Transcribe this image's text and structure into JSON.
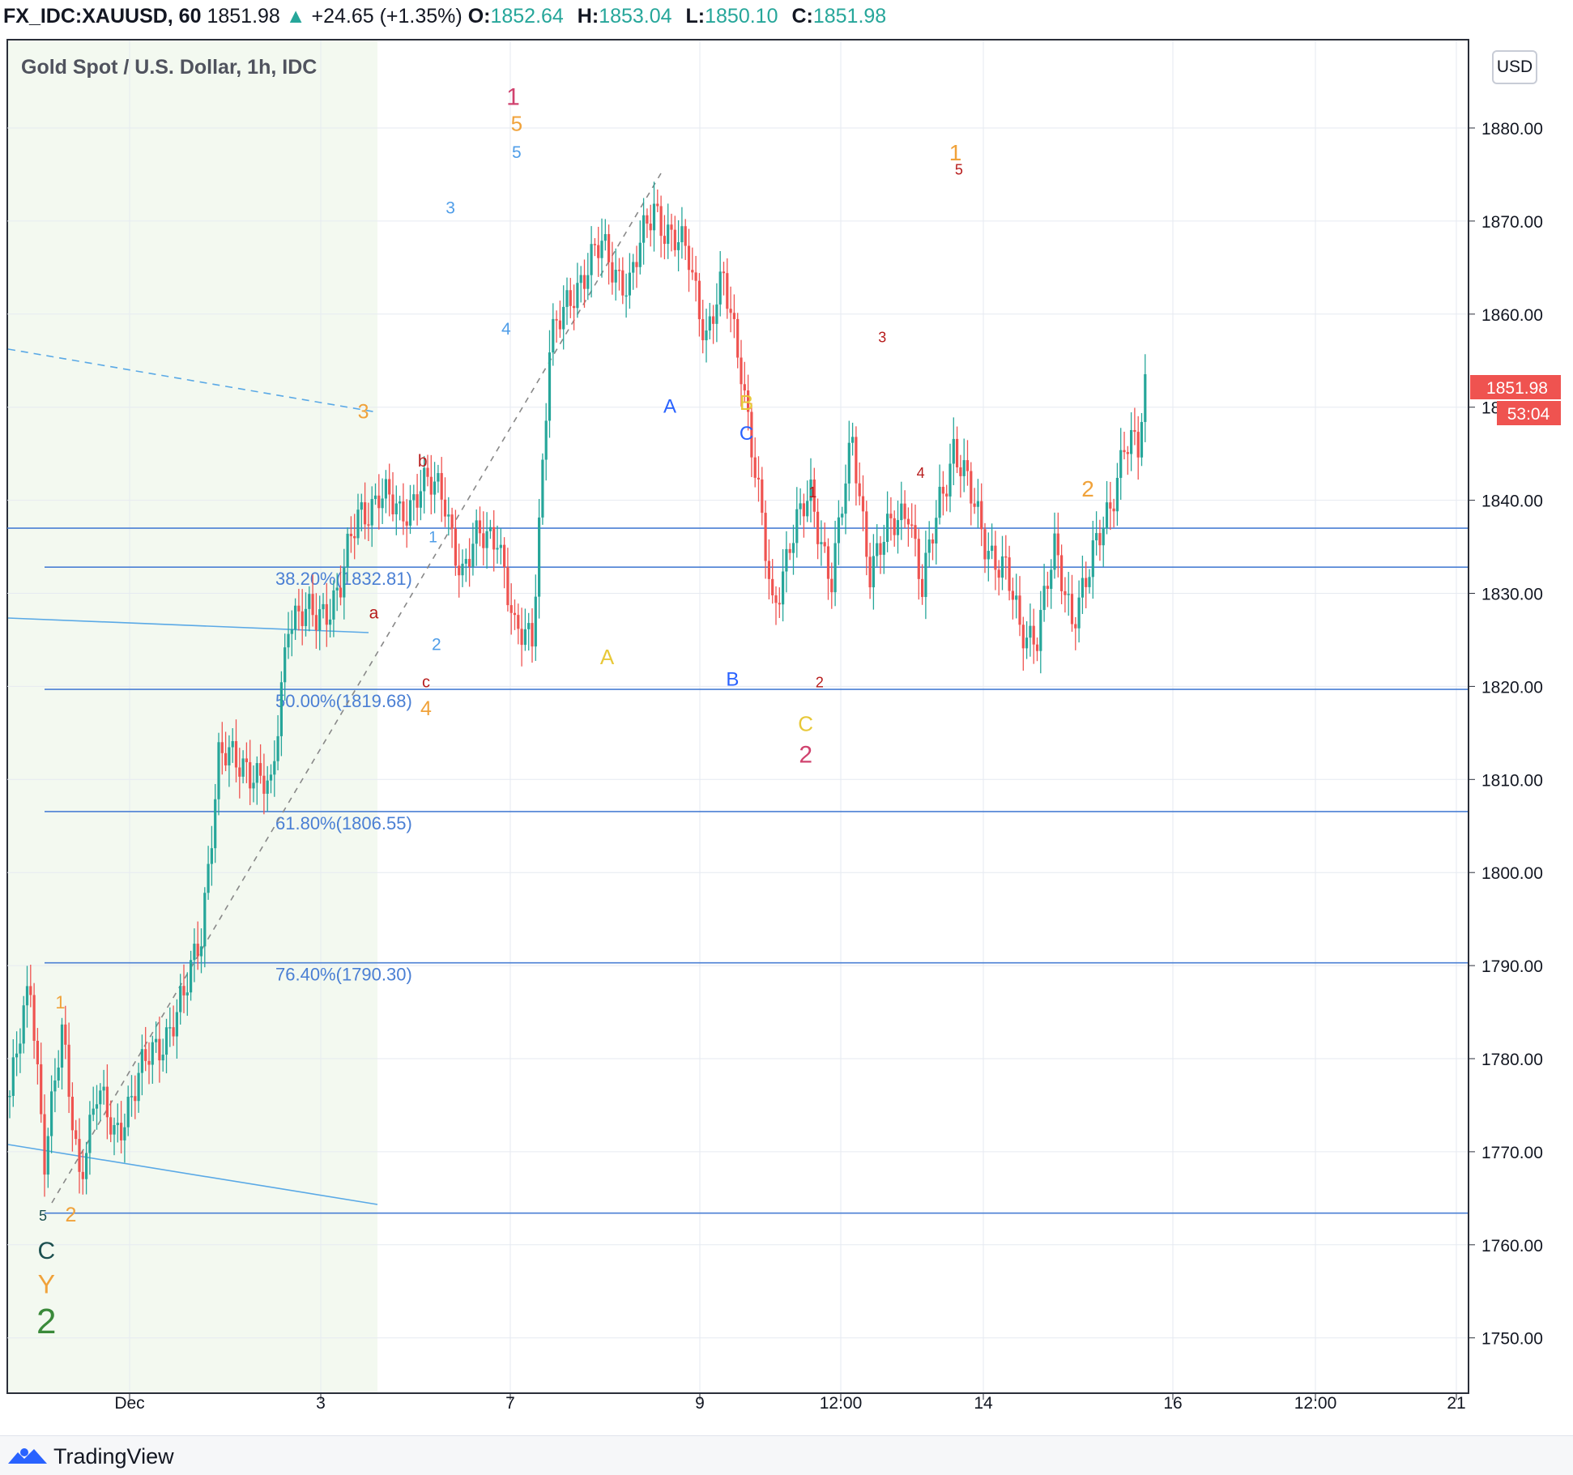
{
  "header": {
    "symbol": "FX_IDC:XAUUSD, 60",
    "last": "1851.98",
    "up_arrow": "▲",
    "change": "+24.65 (+1.35%)",
    "o_label": "O:",
    "o_value": "1852.64",
    "h_label": "H:",
    "h_value": "1853.04",
    "l_label": "L:",
    "l_value": "1850.10",
    "c_label": "C:",
    "c_value": "1851.98"
  },
  "chart_title": "Gold Spot / U.S. Dollar, 1h, IDC",
  "currency_button": "USD",
  "brand": "TradingView",
  "price_tag": {
    "price": "1851.98",
    "countdown": "53:04"
  },
  "colors": {
    "up": "#26a69a",
    "down": "#ef5350",
    "fib": "#4a7fd4",
    "trend": "#5aa9e6",
    "wave_pink": "#d0426e",
    "wave_orange": "#f0a23a",
    "wave_yellow": "#e8c838",
    "wave_blue": "#2962ff",
    "wave_red": "#b71c1c",
    "wave_teal": "#1b4f4f",
    "wave_green": "#3a8a3a"
  },
  "chart_data": {
    "type": "candlestick",
    "title": "Gold Spot / U.S. Dollar, 1h, IDC",
    "ylim": [
      1743,
      1887
    ],
    "y_ticks": [
      "1880.00",
      "1870.00",
      "1860.00",
      "1850.00",
      "1840.00",
      "1830.00",
      "1820.00",
      "1810.00",
      "1800.00",
      "1790.00",
      "1780.00",
      "1770.00",
      "1760.00",
      "1750.00"
    ],
    "x_ticks": [
      "Dec",
      "3",
      "7",
      "9",
      "12:00",
      "14",
      "16",
      "12:00",
      "21"
    ],
    "close_path": [
      [
        0,
        1776
      ],
      [
        6,
        1788
      ],
      [
        10,
        1770
      ],
      [
        15,
        1782
      ],
      [
        20,
        1768
      ],
      [
        25,
        1776
      ],
      [
        30,
        1772
      ],
      [
        40,
        1780
      ],
      [
        50,
        1786
      ],
      [
        55,
        1794
      ],
      [
        60,
        1812
      ],
      [
        68,
        1812
      ],
      [
        75,
        1808
      ],
      [
        80,
        1828
      ],
      [
        88,
        1827
      ],
      [
        95,
        1831
      ],
      [
        100,
        1838
      ],
      [
        106,
        1841
      ],
      [
        112,
        1838
      ],
      [
        118,
        1842
      ],
      [
        125,
        1840
      ],
      [
        130,
        1832
      ],
      [
        135,
        1836
      ],
      [
        140,
        1837
      ],
      [
        145,
        1825
      ],
      [
        150,
        1826
      ],
      [
        155,
        1856
      ],
      [
        162,
        1863
      ],
      [
        170,
        1867
      ],
      [
        178,
        1863
      ],
      [
        185,
        1872
      ],
      [
        190,
        1868
      ],
      [
        195,
        1866
      ],
      [
        200,
        1858
      ],
      [
        205,
        1863
      ],
      [
        210,
        1855
      ],
      [
        215,
        1840
      ],
      [
        219,
        1828
      ],
      [
        224,
        1836
      ],
      [
        230,
        1840
      ],
      [
        236,
        1832
      ],
      [
        242,
        1846
      ],
      [
        247,
        1833
      ],
      [
        252,
        1836
      ],
      [
        258,
        1840
      ],
      [
        262,
        1830
      ],
      [
        267,
        1840
      ],
      [
        271,
        1846
      ],
      [
        276,
        1840
      ],
      [
        280,
        1836
      ],
      [
        286,
        1832
      ],
      [
        290,
        1826
      ],
      [
        295,
        1826
      ],
      [
        300,
        1834
      ],
      [
        305,
        1828
      ],
      [
        310,
        1832
      ],
      [
        316,
        1840
      ],
      [
        320,
        1846
      ],
      [
        324,
        1845
      ],
      [
        326,
        1852
      ]
    ],
    "fib_levels": [
      {
        "label": "38.20%(1832.81)",
        "value": 1832.81
      },
      {
        "label": "50.00%(1819.68)",
        "value": 1819.68
      },
      {
        "label": "61.80%(1806.55)",
        "value": 1806.55
      },
      {
        "label": "76.40%(1790.30)",
        "value": 1790.3
      }
    ],
    "horizontal_lines": [
      1837.0,
      1832.81,
      1819.68,
      1806.55,
      1790.3,
      1763.4
    ],
    "wave_labels": [
      {
        "text": "1",
        "color": "pink",
        "size": 30,
        "t": 145,
        "p": 1882.5
      },
      {
        "text": "5",
        "color": "orange",
        "size": 26,
        "t": 146,
        "p": 1879.7
      },
      {
        "text": "5",
        "color": "blue_light",
        "size": 21,
        "t": 146,
        "p": 1876.8
      },
      {
        "text": "3",
        "color": "blue_light",
        "size": 21,
        "t": 127,
        "p": 1870.8
      },
      {
        "text": "4",
        "color": "blue_light",
        "size": 21,
        "t": 143,
        "p": 1857.8
      },
      {
        "text": "3",
        "color": "orange",
        "size": 25,
        "t": 102,
        "p": 1848.8
      },
      {
        "text": "b",
        "color": "red",
        "size": 21,
        "t": 119,
        "p": 1843.6
      },
      {
        "text": "a",
        "color": "red",
        "size": 21,
        "t": 105,
        "p": 1827.3
      },
      {
        "text": "1",
        "color": "blue_light",
        "size": 19,
        "t": 122,
        "p": 1835.5
      },
      {
        "text": "2",
        "color": "blue_light",
        "size": 21,
        "t": 123,
        "p": 1823.9
      },
      {
        "text": "c",
        "color": "red",
        "size": 20,
        "t": 120,
        "p": 1819.9
      },
      {
        "text": "4",
        "color": "orange",
        "size": 25,
        "t": 120,
        "p": 1816.9
      },
      {
        "text": "A",
        "color": "yellow",
        "size": 26,
        "t": 172,
        "p": 1822.4
      },
      {
        "text": "A",
        "color": "blue",
        "size": 24,
        "t": 190,
        "p": 1849.4
      },
      {
        "text": "B",
        "color": "yellow",
        "size": 26,
        "t": 212,
        "p": 1849.7
      },
      {
        "text": "C",
        "color": "blue",
        "size": 24,
        "t": 212,
        "p": 1846.5
      },
      {
        "text": "B",
        "color": "blue",
        "size": 24,
        "t": 208,
        "p": 1820.1
      },
      {
        "text": "1",
        "color": "red",
        "size": 18,
        "t": 231,
        "p": 1840.3
      },
      {
        "text": "2",
        "color": "red",
        "size": 18,
        "t": 233,
        "p": 1819.9
      },
      {
        "text": "C",
        "color": "yellow",
        "size": 26,
        "t": 229,
        "p": 1815.2
      },
      {
        "text": "2",
        "color": "pink",
        "size": 30,
        "t": 229,
        "p": 1811.8
      },
      {
        "text": "3",
        "color": "red",
        "size": 18,
        "t": 251,
        "p": 1857.0
      },
      {
        "text": "4",
        "color": "red",
        "size": 18,
        "t": 262,
        "p": 1842.4
      },
      {
        "text": "1",
        "color": "orange",
        "size": 28,
        "t": 272,
        "p": 1876.5
      },
      {
        "text": "5",
        "color": "red",
        "size": 18,
        "t": 273,
        "p": 1875.0
      },
      {
        "text": "2",
        "color": "orange",
        "size": 28,
        "t": 310,
        "p": 1840.4
      },
      {
        "text": "1",
        "color": "orange",
        "size": 22,
        "t": 15,
        "p": 1785.4
      },
      {
        "text": "5",
        "color": "teal_dark",
        "size": 18,
        "t": 10,
        "p": 1762.6
      },
      {
        "text": "2",
        "color": "orange",
        "size": 25,
        "t": 18,
        "p": 1762.5
      },
      {
        "text": "C",
        "color": "teal_dark",
        "size": 30,
        "t": 11,
        "p": 1758.5
      },
      {
        "text": "Y",
        "color": "orange",
        "size": 32,
        "t": 11,
        "p": 1754.8
      },
      {
        "text": "2",
        "color": "green",
        "size": 44,
        "t": 11,
        "p": 1750.5
      }
    ]
  }
}
